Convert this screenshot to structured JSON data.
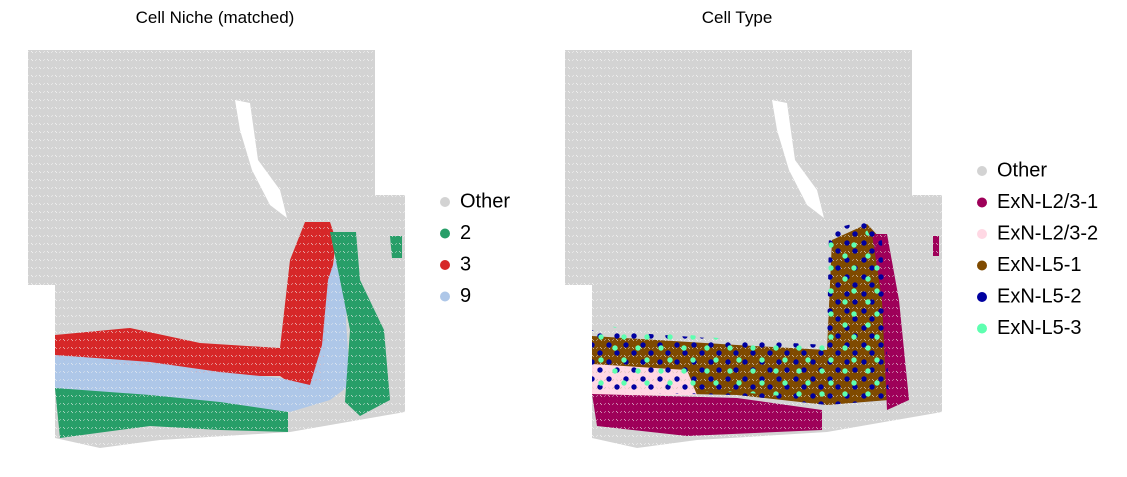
{
  "chart_data": [
    {
      "type": "scatter",
      "title": "Cell Niche (matched)",
      "series": [
        {
          "name": "Other",
          "color": "#d3d3d3"
        },
        {
          "name": "2",
          "color": "#279e68"
        },
        {
          "name": "3",
          "color": "#d62728"
        },
        {
          "name": "9",
          "color": "#aec7e8"
        }
      ]
    },
    {
      "type": "scatter",
      "title": "Cell Type",
      "series": [
        {
          "name": "Other",
          "color": "#d3d3d3"
        },
        {
          "name": "ExN-L2/3-1",
          "color": "#9e0059"
        },
        {
          "name": "ExN-L2/3-2",
          "color": "#ffd8e4"
        },
        {
          "name": "ExN-L5-1",
          "color": "#7f4a00"
        },
        {
          "name": "ExN-L5-2",
          "color": "#0000a0"
        },
        {
          "name": "ExN-L5-3",
          "color": "#5effb0"
        }
      ]
    }
  ]
}
